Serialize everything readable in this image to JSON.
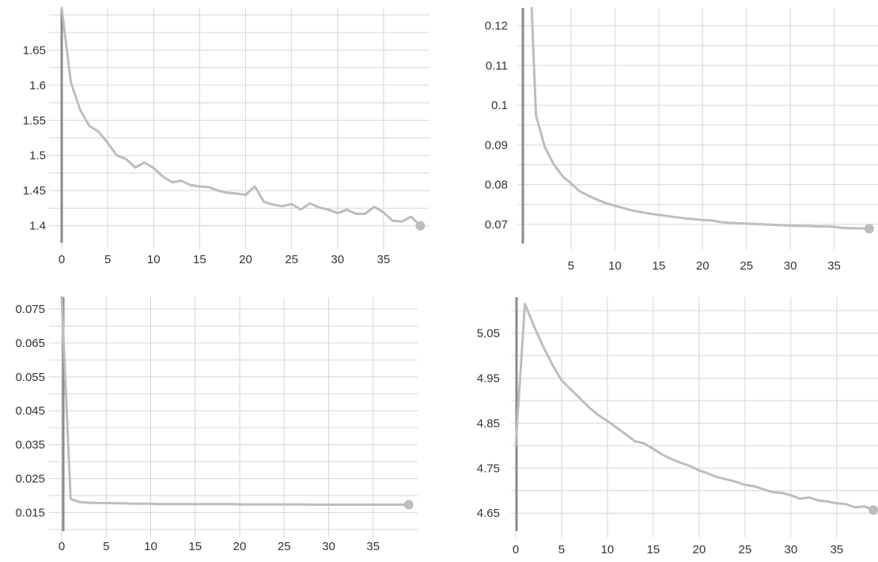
{
  "colors": {
    "series": "#bdbdbd",
    "grid": "#d6d6d6",
    "axis": "#8a8a8a",
    "text": "#333333"
  },
  "chart_data": [
    {
      "type": "line",
      "title": "",
      "xlabel": "",
      "ylabel": "",
      "grid": true,
      "xlim": [
        0,
        40
      ],
      "ylim": [
        1.376,
        1.71
      ],
      "x_ticks": [
        0,
        5,
        10,
        15,
        20,
        25,
        30,
        35
      ],
      "x_tick_labels": [
        "0",
        "5",
        "10",
        "15",
        "20",
        "25",
        "30",
        "35"
      ],
      "y_ticks": [
        1.4,
        1.45,
        1.5,
        1.55,
        1.6,
        1.65
      ],
      "y_tick_labels": [
        "1.4",
        "1.45",
        "1.5",
        "1.55",
        "1.6",
        "1.65"
      ],
      "series": [
        {
          "x": [
            0,
            1,
            2,
            3,
            4,
            5,
            6,
            7,
            8,
            9,
            10,
            11,
            12,
            13,
            14,
            15,
            16,
            17,
            18,
            19,
            20,
            21,
            22,
            23,
            24,
            25,
            26,
            27,
            28,
            29,
            30,
            31,
            32,
            33,
            34,
            35,
            36,
            37,
            38,
            39
          ],
          "y": [
            1.71,
            1.604,
            1.565,
            1.542,
            1.534,
            1.518,
            1.5,
            1.495,
            1.483,
            1.49,
            1.482,
            1.47,
            1.462,
            1.464,
            1.458,
            1.456,
            1.455,
            1.45,
            1.447,
            1.446,
            1.444,
            1.456,
            1.434,
            1.43,
            1.428,
            1.431,
            1.423,
            1.432,
            1.426,
            1.423,
            1.418,
            1.423,
            1.417,
            1.417,
            1.427,
            1.419,
            1.407,
            1.406,
            1.413,
            1.4
          ]
        }
      ]
    },
    {
      "type": "line",
      "title": "",
      "xlabel": "",
      "ylabel": "",
      "grid": true,
      "xlim": [
        -0.5,
        40
      ],
      "ylim": [
        0.0652,
        0.1245
      ],
      "x_ticks": [
        5,
        10,
        15,
        20,
        25,
        30,
        35
      ],
      "x_tick_labels": [
        "5",
        "10",
        "15",
        "20",
        "25",
        "30",
        "35"
      ],
      "y_ticks": [
        0.07,
        0.08,
        0.09,
        0.1,
        0.11,
        0.12
      ],
      "y_tick_labels": [
        "0.07",
        "0.08",
        "0.09",
        "0.1",
        "0.11",
        "0.12"
      ],
      "series": [
        {
          "x": [
            0.5,
            1,
            2,
            3,
            4,
            5,
            6,
            7,
            8,
            9,
            10,
            11,
            12,
            13,
            14,
            15,
            16,
            17,
            18,
            19,
            20,
            21,
            22,
            23,
            24,
            25,
            26,
            27,
            28,
            29,
            30,
            31,
            32,
            33,
            34,
            35,
            36,
            37,
            38,
            39
          ],
          "y": [
            0.1245,
            0.0975,
            0.0895,
            0.0852,
            0.0822,
            0.0803,
            0.0783,
            0.0772,
            0.0762,
            0.0753,
            0.0747,
            0.0741,
            0.0735,
            0.0731,
            0.0727,
            0.0724,
            0.0721,
            0.0718,
            0.0715,
            0.0713,
            0.0711,
            0.071,
            0.0706,
            0.0704,
            0.0703,
            0.0702,
            0.0701,
            0.07,
            0.0699,
            0.0698,
            0.0697,
            0.0696,
            0.0696,
            0.0695,
            0.0695,
            0.0694,
            0.0691,
            0.069,
            0.069,
            0.0689
          ]
        }
      ]
    },
    {
      "type": "line",
      "title": "",
      "xlabel": "",
      "ylabel": "",
      "grid": true,
      "xlim": [
        0,
        40
      ],
      "ylim": [
        0.0095,
        0.0785
      ],
      "x_ticks": [
        0,
        5,
        10,
        15,
        20,
        25,
        30,
        35
      ],
      "x_tick_labels": [
        "0",
        "5",
        "10",
        "15",
        "20",
        "25",
        "30",
        "35"
      ],
      "y_ticks": [
        0.015,
        0.025,
        0.035,
        0.045,
        0.055,
        0.065,
        0.075
      ],
      "y_tick_labels": [
        "0.015",
        "0.025",
        "0.035",
        "0.045",
        "0.055",
        "0.065",
        "0.075"
      ],
      "series": [
        {
          "x": [
            0,
            1,
            2,
            3,
            4,
            5,
            6,
            7,
            8,
            9,
            10,
            11,
            12,
            13,
            14,
            15,
            16,
            17,
            18,
            19,
            20,
            21,
            22,
            23,
            24,
            25,
            26,
            27,
            28,
            29,
            30,
            31,
            32,
            33,
            34,
            35,
            36,
            37,
            38,
            39
          ],
          "y": [
            0.0785,
            0.019,
            0.0181,
            0.0179,
            0.0178,
            0.0178,
            0.0177,
            0.0177,
            0.0176,
            0.0176,
            0.0176,
            0.0175,
            0.0175,
            0.0175,
            0.0175,
            0.0175,
            0.0175,
            0.0175,
            0.0175,
            0.0175,
            0.0174,
            0.0174,
            0.0174,
            0.0174,
            0.0174,
            0.0174,
            0.0174,
            0.0174,
            0.0173,
            0.0173,
            0.0173,
            0.0173,
            0.0173,
            0.0173,
            0.0173,
            0.0173,
            0.0173,
            0.0173,
            0.0173,
            0.0173
          ]
        }
      ]
    },
    {
      "type": "line",
      "title": "",
      "xlabel": "",
      "ylabel": "",
      "grid": true,
      "xlim": [
        0,
        39.5
      ],
      "ylim": [
        4.61,
        5.13
      ],
      "x_ticks": [
        0,
        5,
        10,
        15,
        20,
        25,
        30,
        35
      ],
      "x_tick_labels": [
        "0",
        "5",
        "10",
        "15",
        "20",
        "25",
        "30",
        "35"
      ],
      "y_ticks": [
        4.65,
        4.75,
        4.85,
        4.95,
        5.05
      ],
      "y_tick_labels": [
        "4.65",
        "4.75",
        "4.85",
        "4.95",
        "5.05"
      ],
      "series": [
        {
          "x": [
            0,
            1,
            2,
            3,
            4,
            5,
            6,
            7,
            8,
            9,
            10,
            11,
            12,
            13,
            14,
            15,
            16,
            17,
            18,
            19,
            20,
            21,
            22,
            23,
            24,
            25,
            26,
            27,
            28,
            29,
            30,
            31,
            32,
            33,
            34,
            35,
            36,
            37,
            38,
            39
          ],
          "y": [
            4.8,
            5.115,
            5.065,
            5.02,
            4.98,
            4.945,
            4.925,
            4.905,
            4.885,
            4.868,
            4.855,
            4.84,
            4.825,
            4.81,
            4.805,
            4.793,
            4.78,
            4.77,
            4.762,
            4.755,
            4.745,
            4.738,
            4.73,
            4.725,
            4.72,
            4.713,
            4.71,
            4.703,
            4.697,
            4.695,
            4.69,
            4.682,
            4.685,
            4.678,
            4.676,
            4.672,
            4.67,
            4.663,
            4.665,
            4.657
          ]
        }
      ]
    }
  ]
}
